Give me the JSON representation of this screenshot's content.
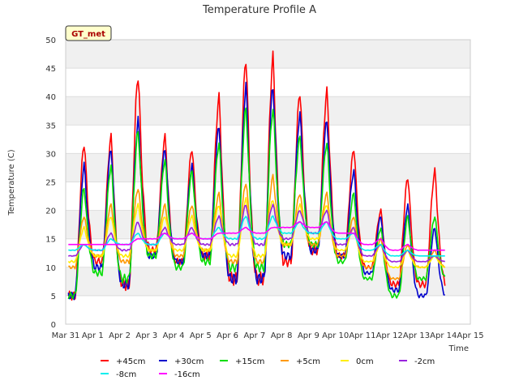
{
  "chart_data": {
    "type": "line",
    "title": "Temperature Profile A",
    "xlabel": "Time",
    "ylabel": "Temperature (C)",
    "ylim": [
      0,
      50
    ],
    "yticks": [
      0,
      5,
      10,
      15,
      20,
      25,
      30,
      35,
      40,
      45,
      50
    ],
    "xlim": [
      0,
      15
    ],
    "xticks": [
      0,
      1,
      2,
      3,
      4,
      5,
      6,
      7,
      8,
      9,
      10,
      11,
      12,
      13,
      14,
      15
    ],
    "xtick_labels": [
      "Mar 31",
      "Apr 1",
      "Apr 2",
      "Apr 3",
      "Apr 4",
      "Apr 5",
      "Apr 6",
      "Apr 7",
      "Apr 8",
      "Apr 9",
      "Apr 10",
      "Apr 11",
      "Apr 12",
      "Apr 13",
      "Apr 14",
      "Apr 15"
    ],
    "x_units": "days after Mar 31",
    "background_bands": true,
    "station_label": "GT_met",
    "legend_position": "bottom",
    "series": [
      {
        "name": "+45cm",
        "color": "#ff0000",
        "daily_max": [
          32,
          33,
          44,
          33,
          31,
          40,
          47,
          47,
          41,
          41,
          31,
          20,
          26,
          27
        ],
        "daily_min": [
          5,
          11,
          7,
          13,
          11,
          12,
          8,
          8,
          11,
          13,
          12,
          10,
          7,
          7
        ]
      },
      {
        "name": "+30cm",
        "color": "#0000cc",
        "daily_max": [
          28,
          31,
          36,
          31,
          28,
          35,
          42,
          42,
          37,
          36,
          27,
          19,
          21,
          17
        ],
        "daily_min": [
          5,
          10,
          7,
          12,
          11,
          12,
          8,
          8,
          12,
          13,
          12,
          9,
          6,
          5
        ]
      },
      {
        "name": "+15cm",
        "color": "#00dd00",
        "daily_max": [
          24,
          28,
          34,
          29,
          27,
          32,
          38,
          38,
          33,
          32,
          23,
          17,
          19,
          19
        ],
        "daily_min": [
          5,
          9,
          8,
          12,
          10,
          11,
          10,
          10,
          14,
          14,
          11,
          8,
          5,
          8
        ]
      },
      {
        "name": "+5cm",
        "color": "#ff9900",
        "daily_max": [
          19,
          21,
          24,
          21,
          21,
          23,
          25,
          26,
          23,
          23,
          19,
          15,
          14,
          13
        ],
        "daily_min": [
          10,
          12,
          11,
          13,
          12,
          13,
          11,
          11,
          14,
          14,
          12,
          10,
          8,
          10
        ]
      },
      {
        "name": "0cm",
        "color": "#ffee00",
        "daily_max": [
          17,
          19,
          21,
          19,
          19,
          21,
          22,
          22,
          21,
          21,
          17,
          14,
          13,
          12
        ],
        "daily_min": [
          11,
          12,
          12,
          13,
          13,
          13,
          12,
          12,
          14,
          15,
          13,
          11,
          10,
          10
        ]
      },
      {
        "name": "-2cm",
        "color": "#9922dd",
        "daily_max": [
          14,
          16,
          18,
          17,
          17,
          19,
          21,
          21,
          20,
          20,
          17,
          14,
          13,
          12
        ],
        "daily_min": [
          12,
          13,
          13,
          14,
          14,
          14,
          14,
          14,
          15,
          16,
          14,
          12,
          11,
          11
        ]
      },
      {
        "name": "-8cm",
        "color": "#00eeee",
        "daily_max": [
          14,
          15,
          16,
          16,
          16,
          17,
          19,
          19,
          18,
          18,
          16,
          14,
          13,
          12
        ],
        "daily_min": [
          13,
          13,
          14,
          14,
          15,
          15,
          15,
          15,
          16,
          16,
          15,
          13,
          12,
          12
        ]
      },
      {
        "name": "-16cm",
        "color": "#ff00ff",
        "daily_max": [
          14,
          14,
          15,
          16,
          16,
          16,
          17,
          17,
          18,
          18,
          16,
          15,
          14,
          13
        ],
        "daily_min": [
          14,
          14,
          14,
          15,
          15,
          15,
          16,
          16,
          17,
          17,
          16,
          14,
          13,
          13
        ]
      }
    ]
  }
}
